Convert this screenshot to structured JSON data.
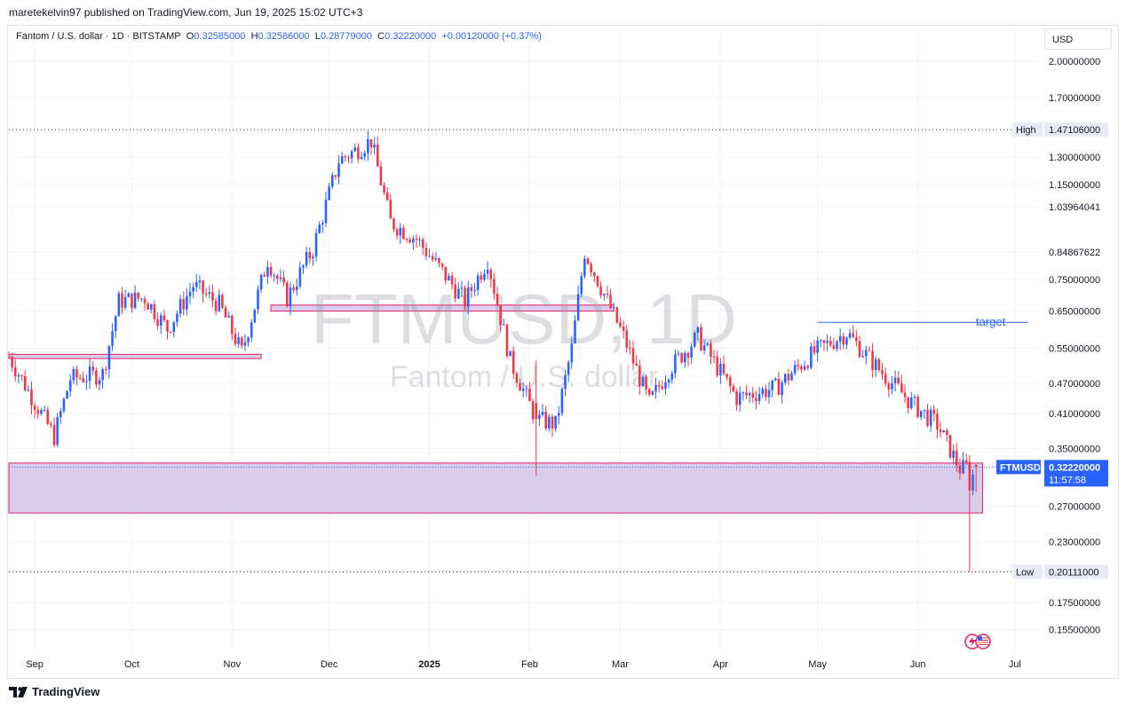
{
  "publisher": "maretekelvin97 published on TradingView.com, Jun 19, 2025 15:02 UTC+3",
  "header": {
    "symbol_desc": "Fantom / U.S. dollar · 1D · BITSTAMP",
    "o_label": "O",
    "o_value": "0.32585000",
    "h_label": "H",
    "h_value": "0.32586000",
    "l_label": "L",
    "l_value": "0.28779000",
    "c_label": "C",
    "c_value": "0.32220000",
    "change": "+0.00120000 (+0.37%)"
  },
  "currency": "USD",
  "watermark": {
    "symbol": "FTMUSD, 1D",
    "name": "Fantom / U.S. dollar"
  },
  "annotations": {
    "target": "target",
    "high_label": "High",
    "high_value": "1.47106000",
    "low_label": "Low",
    "low_value": "0.20111000",
    "last_symbol": "FTMUSD",
    "last_value": "0.32220000",
    "countdown": "11:57:58"
  },
  "footer": {
    "brand": "TradingView"
  },
  "colors": {
    "up": "#2962ff",
    "down": "#f23645",
    "zone_fill": "#d1c4e9",
    "zone_border": "#e91e63",
    "grid": "#f0f3fa"
  },
  "chart_data": {
    "type": "candlestick",
    "title": "FTMUSD, 1D",
    "scale": "log",
    "y_ticks": [
      "2.00000000",
      "1.70000000",
      "1.30000000",
      "1.15000000",
      "1.03964041",
      "0.84867622",
      "0.75000000",
      "0.65000000",
      "0.55000000",
      "0.47000000",
      "0.41000000",
      "0.35000000",
      "0.27000000",
      "0.23000000",
      "0.17500000",
      "0.15500000"
    ],
    "x_ticks": [
      "Sep",
      "Oct",
      "Nov",
      "Dec",
      "2025",
      "Feb",
      "Mar",
      "Apr",
      "May",
      "Jun",
      "Jul"
    ],
    "ylim": [
      0.14,
      2.1
    ],
    "x_range": [
      "2024-08-24",
      "2025-07-09"
    ],
    "tick_dates": [
      "2024-09-01",
      "2024-10-01",
      "2024-11-01",
      "2024-12-01",
      "2025-01-01",
      "2025-02-01",
      "2025-03-01",
      "2025-04-01",
      "2025-05-01",
      "2025-06-01",
      "2025-07-01"
    ],
    "last_date": "2025-06-19",
    "price_path": [
      {
        "date": "2024-08-24",
        "close": 0.53
      },
      {
        "date": "2024-09-07",
        "close": 0.37
      },
      {
        "date": "2024-09-12",
        "close": 0.48
      },
      {
        "date": "2024-09-22",
        "close": 0.49
      },
      {
        "date": "2024-09-27",
        "close": 0.68
      },
      {
        "date": "2024-10-05",
        "close": 0.69
      },
      {
        "date": "2024-10-12",
        "close": 0.6
      },
      {
        "date": "2024-10-20",
        "close": 0.73
      },
      {
        "date": "2024-10-28",
        "close": 0.67
      },
      {
        "date": "2024-11-04",
        "close": 0.54
      },
      {
        "date": "2024-11-12",
        "close": 0.82
      },
      {
        "date": "2024-11-18",
        "close": 0.69
      },
      {
        "date": "2024-11-26",
        "close": 0.86
      },
      {
        "date": "2024-12-04",
        "close": 1.28
      },
      {
        "date": "2024-12-14",
        "close": 1.4
      },
      {
        "date": "2024-12-20",
        "close": 0.97
      },
      {
        "date": "2024-12-28",
        "close": 0.9
      },
      {
        "date": "2025-01-04",
        "close": 0.79
      },
      {
        "date": "2025-01-12",
        "close": 0.68
      },
      {
        "date": "2025-01-19",
        "close": 0.82
      },
      {
        "date": "2025-01-26",
        "close": 0.52
      },
      {
        "date": "2025-02-03",
        "close": 0.4
      },
      {
        "date": "2025-02-09",
        "close": 0.39
      },
      {
        "date": "2025-02-14",
        "close": 0.55
      },
      {
        "date": "2025-02-18",
        "close": 0.85
      },
      {
        "date": "2025-02-25",
        "close": 0.68
      },
      {
        "date": "2025-03-02",
        "close": 0.58
      },
      {
        "date": "2025-03-10",
        "close": 0.43
      },
      {
        "date": "2025-03-16",
        "close": 0.5
      },
      {
        "date": "2025-03-25",
        "close": 0.58
      },
      {
        "date": "2025-04-06",
        "close": 0.44
      },
      {
        "date": "2025-04-18",
        "close": 0.46
      },
      {
        "date": "2025-04-30",
        "close": 0.54
      },
      {
        "date": "2025-05-10",
        "close": 0.59
      },
      {
        "date": "2025-05-20",
        "close": 0.5
      },
      {
        "date": "2025-05-30",
        "close": 0.43
      },
      {
        "date": "2025-06-07",
        "close": 0.39
      },
      {
        "date": "2025-06-14",
        "close": 0.32
      },
      {
        "date": "2025-06-19",
        "close": 0.3222
      }
    ],
    "special_candles": [
      {
        "date": "2025-02-03",
        "open": 0.43,
        "high": 0.52,
        "low": 0.31,
        "close": 0.4
      },
      {
        "date": "2025-06-17",
        "open": 0.33,
        "high": 0.34,
        "low": 0.20111,
        "close": 0.29
      },
      {
        "date": "2025-06-19",
        "open": 0.32585,
        "high": 0.32586,
        "low": 0.28779,
        "close": 0.3222
      }
    ],
    "zones": [
      {
        "start": "2024-08-24",
        "end": "2024-11-10",
        "low": 0.525,
        "high": 0.535
      },
      {
        "start": "2024-11-13",
        "end": "2025-02-27",
        "low": 0.65,
        "high": 0.668
      },
      {
        "start": "2024-08-24",
        "end": "2025-06-21",
        "low": 0.262,
        "high": 0.328
      }
    ],
    "levels": [
      {
        "name": "target",
        "value": 0.618,
        "start": "2025-05-01",
        "end": "2025-07-05"
      },
      {
        "name": "High",
        "value": 1.47106
      },
      {
        "name": "Low",
        "value": 0.20111
      }
    ],
    "last_price": 0.3222
  }
}
